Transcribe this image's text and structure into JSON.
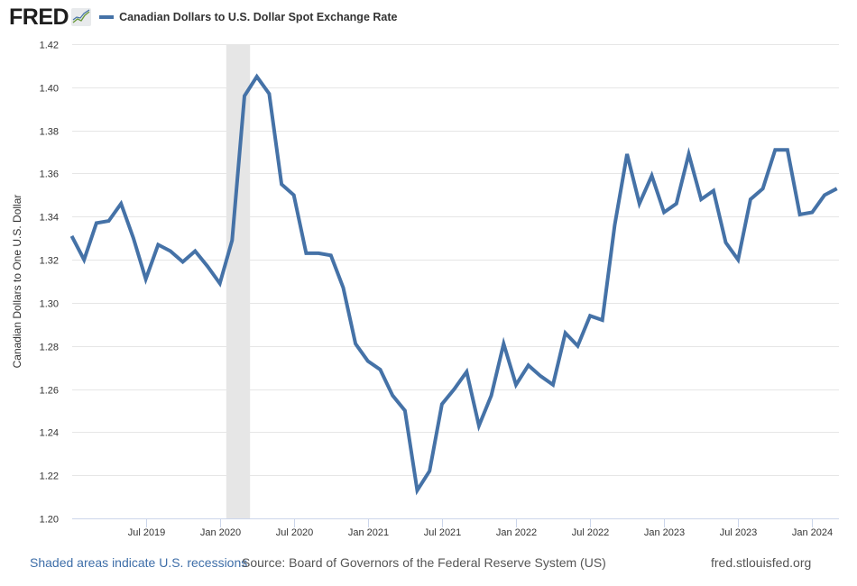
{
  "header": {
    "logo_text": "FRED",
    "logo_icon": "fred-graph-icon",
    "series_label": "Canadian Dollars to U.S. Dollar Spot Exchange Rate"
  },
  "footer": {
    "recession_note": "Shaded areas indicate U.S. recessions",
    "source": "Source: Board of Governors of the Federal Reserve System (US)",
    "site": "fred.stlouisfed.org"
  },
  "colors": {
    "series": "#4572a7",
    "recession": "#e6e6e6",
    "grid": "#e6e6e6",
    "axis": "#ccd6eb"
  },
  "chart_data": {
    "type": "line",
    "title": "Canadian Dollars to U.S. Dollar Spot Exchange Rate",
    "xlabel": "",
    "ylabel": "Canadian Dollars to One U.S. Dollar",
    "ylim": [
      1.2,
      1.42
    ],
    "yticks": [
      "1.20",
      "1.22",
      "1.24",
      "1.26",
      "1.28",
      "1.30",
      "1.32",
      "1.34",
      "1.36",
      "1.38",
      "1.40",
      "1.42"
    ],
    "grid": true,
    "legend": "top-left",
    "x_start": "2019-01",
    "xticks": [
      {
        "label": "Jul 2019",
        "month_index": 6
      },
      {
        "label": "Jan 2020",
        "month_index": 12
      },
      {
        "label": "Jul 2020",
        "month_index": 18
      },
      {
        "label": "Jan 2021",
        "month_index": 24
      },
      {
        "label": "Jul 2021",
        "month_index": 30
      },
      {
        "label": "Jan 2022",
        "month_index": 36
      },
      {
        "label": "Jul 2022",
        "month_index": 42
      },
      {
        "label": "Jan 2023",
        "month_index": 48
      },
      {
        "label": "Jul 2023",
        "month_index": 54
      },
      {
        "label": "Jan 2024",
        "month_index": 60
      }
    ],
    "recessions": [
      {
        "start_month_index": 13,
        "end_month_index": 15
      }
    ],
    "series": [
      {
        "name": "Canadian Dollars to U.S. Dollar Spot Exchange Rate",
        "x": [
          "2019-01",
          "2019-02",
          "2019-03",
          "2019-04",
          "2019-05",
          "2019-06",
          "2019-07",
          "2019-08",
          "2019-09",
          "2019-10",
          "2019-11",
          "2019-12",
          "2020-01",
          "2020-02",
          "2020-03",
          "2020-04",
          "2020-05",
          "2020-06",
          "2020-07",
          "2020-08",
          "2020-09",
          "2020-10",
          "2020-11",
          "2020-12",
          "2021-01",
          "2021-02",
          "2021-03",
          "2021-04",
          "2021-05",
          "2021-06",
          "2021-07",
          "2021-08",
          "2021-09",
          "2021-10",
          "2021-11",
          "2021-12",
          "2022-01",
          "2022-02",
          "2022-03",
          "2022-04",
          "2022-05",
          "2022-06",
          "2022-07",
          "2022-08",
          "2022-09",
          "2022-10",
          "2022-11",
          "2022-12",
          "2023-01",
          "2023-02",
          "2023-03",
          "2023-04",
          "2023-05",
          "2023-06",
          "2023-07",
          "2023-08",
          "2023-09",
          "2023-10",
          "2023-11",
          "2023-12",
          "2024-01",
          "2024-02",
          "2024-03"
        ],
        "values": [
          1.331,
          1.32,
          1.337,
          1.338,
          1.346,
          1.33,
          1.311,
          1.327,
          1.324,
          1.319,
          1.324,
          1.317,
          1.309,
          1.329,
          1.396,
          1.405,
          1.397,
          1.355,
          1.35,
          1.323,
          1.323,
          1.322,
          1.307,
          1.281,
          1.273,
          1.269,
          1.257,
          1.25,
          1.213,
          1.222,
          1.253,
          1.26,
          1.268,
          1.243,
          1.257,
          1.281,
          1.262,
          1.271,
          1.266,
          1.262,
          1.286,
          1.28,
          1.294,
          1.292,
          1.336,
          1.369,
          1.346,
          1.359,
          1.342,
          1.346,
          1.369,
          1.348,
          1.352,
          1.328,
          1.32,
          1.348,
          1.353,
          1.371,
          1.371,
          1.341,
          1.342,
          1.35,
          1.353
        ]
      }
    ]
  }
}
